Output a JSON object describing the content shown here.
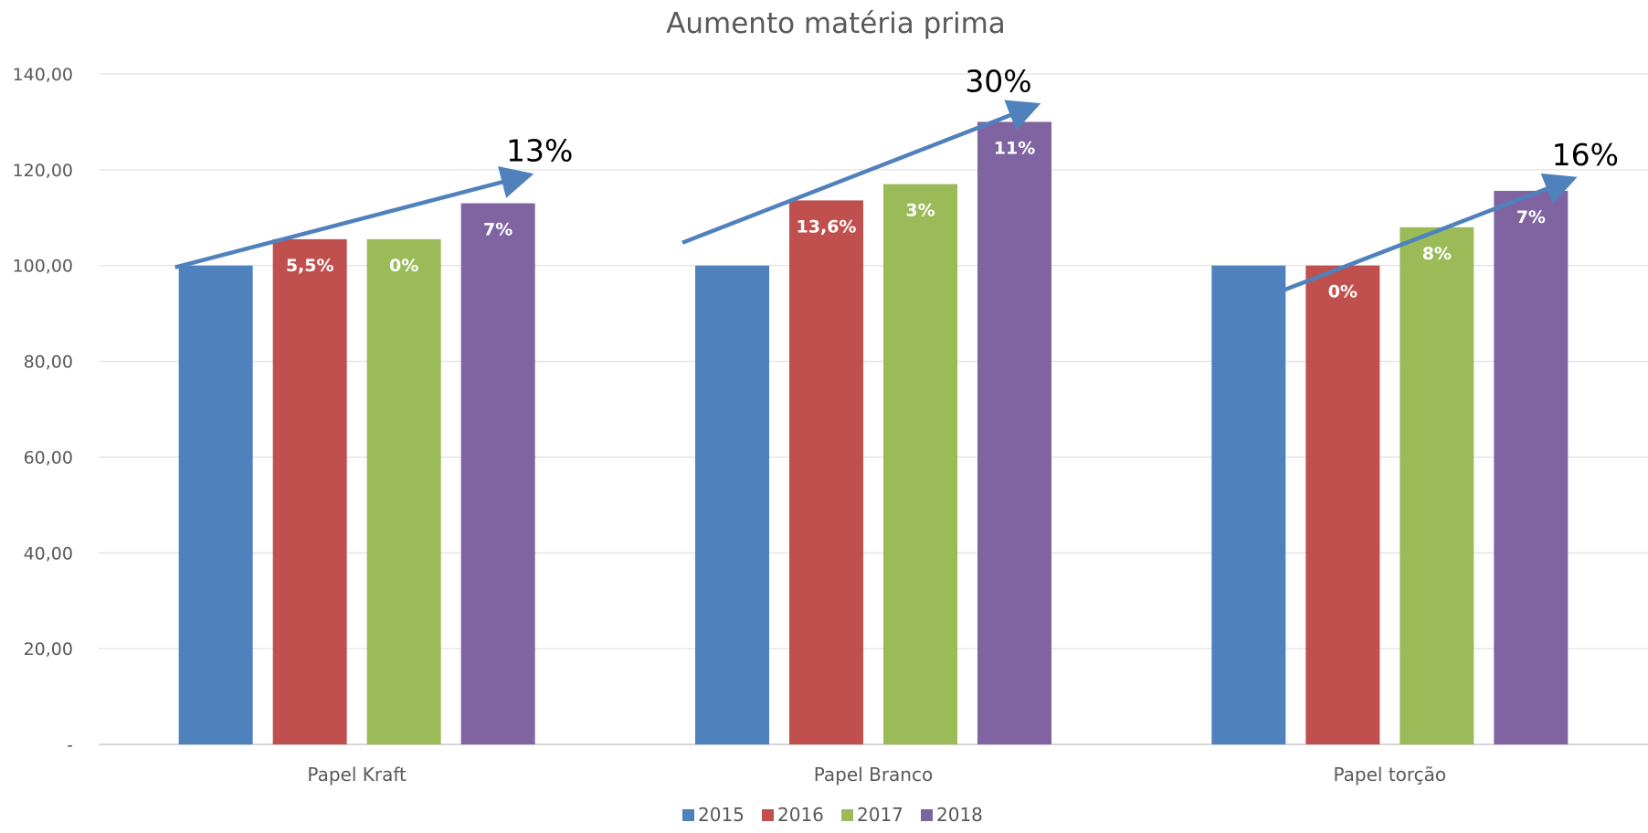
{
  "chart_data": {
    "type": "bar",
    "title": "Aumento matéria prima",
    "xlabel": "",
    "ylabel": "",
    "categories": [
      "Papel Kraft",
      "Papel Branco",
      "Papel torção"
    ],
    "series": [
      {
        "name": "2015",
        "color": "#4F81BD",
        "values": [
          100,
          100,
          100
        ],
        "labels": [
          "",
          "",
          ""
        ]
      },
      {
        "name": "2016",
        "color": "#C0504D",
        "values": [
          105.5,
          113.6,
          100
        ],
        "labels": [
          "5,5%",
          "13,6%",
          "0%"
        ]
      },
      {
        "name": "2017",
        "color": "#9BBB59",
        "values": [
          105.5,
          117.0,
          108
        ],
        "labels": [
          "0%",
          "3%",
          "8%"
        ]
      },
      {
        "name": "2018",
        "color": "#8064A2",
        "values": [
          113.0,
          130.0,
          115.6
        ],
        "labels": [
          "7%",
          "11%",
          "7%"
        ]
      }
    ],
    "ylim": [
      0,
      140
    ],
    "yticks": [
      {
        "value": 0,
        "label": "-"
      },
      {
        "value": 20,
        "label": "20,00"
      },
      {
        "value": 40,
        "label": "40,00"
      },
      {
        "value": 60,
        "label": "60,00"
      },
      {
        "value": 80,
        "label": "80,00"
      },
      {
        "value": 100,
        "label": "100,00"
      },
      {
        "value": 120,
        "label": "120,00"
      },
      {
        "value": 140,
        "label": "140,00"
      }
    ],
    "grid": true,
    "legend": "bottom",
    "annotations": [
      {
        "category": "Papel Kraft",
        "text": "13%"
      },
      {
        "category": "Papel Branco",
        "text": "30%"
      },
      {
        "category": "Papel torção",
        "text": "16%"
      }
    ],
    "arrow_color": "#4F81BD"
  }
}
